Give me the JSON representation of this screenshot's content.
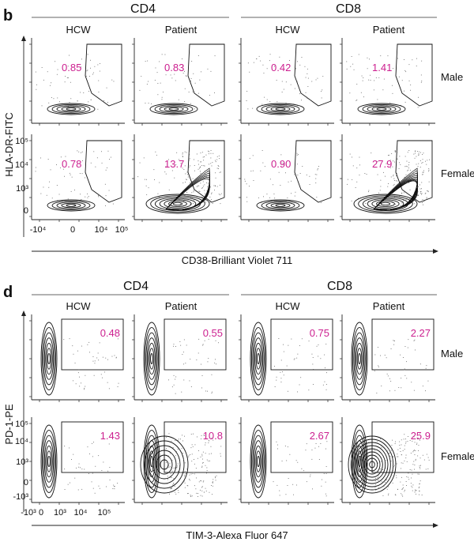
{
  "figure": {
    "b": {
      "letter": "b",
      "groups": [
        "CD4",
        "CD8"
      ],
      "columns": [
        "HCW",
        "Patient",
        "HCW",
        "Patient"
      ],
      "rows": [
        "Male",
        "Female"
      ],
      "y_axis_label": "HLA-DR-FITC",
      "x_axis_label": "CD38-Brilliant Violet 711",
      "y_ticks": [
        "10⁵",
        "10⁴",
        "10³",
        "0"
      ],
      "x_ticks": [
        "-10⁴",
        "0",
        "10⁴",
        "10⁵"
      ],
      "percentages": [
        [
          "0.85",
          "0.83",
          "0.42",
          "1.41"
        ],
        [
          "0.78",
          "13.7",
          "0.90",
          "27.9"
        ]
      ]
    },
    "d": {
      "letter": "d",
      "groups": [
        "CD4",
        "CD8"
      ],
      "columns": [
        "HCW",
        "Patient",
        "HCW",
        "Patient"
      ],
      "rows": [
        "Male",
        "Female"
      ],
      "y_axis_label": "PD-1-PE",
      "x_axis_label": "TIM-3-Alexa Fluor 647",
      "y_ticks": [
        "10⁵",
        "10⁴",
        "10³",
        "0",
        "-10³"
      ],
      "x_ticks": [
        "-10³",
        "0",
        "10³",
        "10⁴",
        "10⁵"
      ],
      "percentages": [
        [
          "0.48",
          "0.55",
          "0.75",
          "2.27"
        ],
        [
          "1.43",
          "10.8",
          "2.67",
          "25.9"
        ]
      ]
    }
  }
}
